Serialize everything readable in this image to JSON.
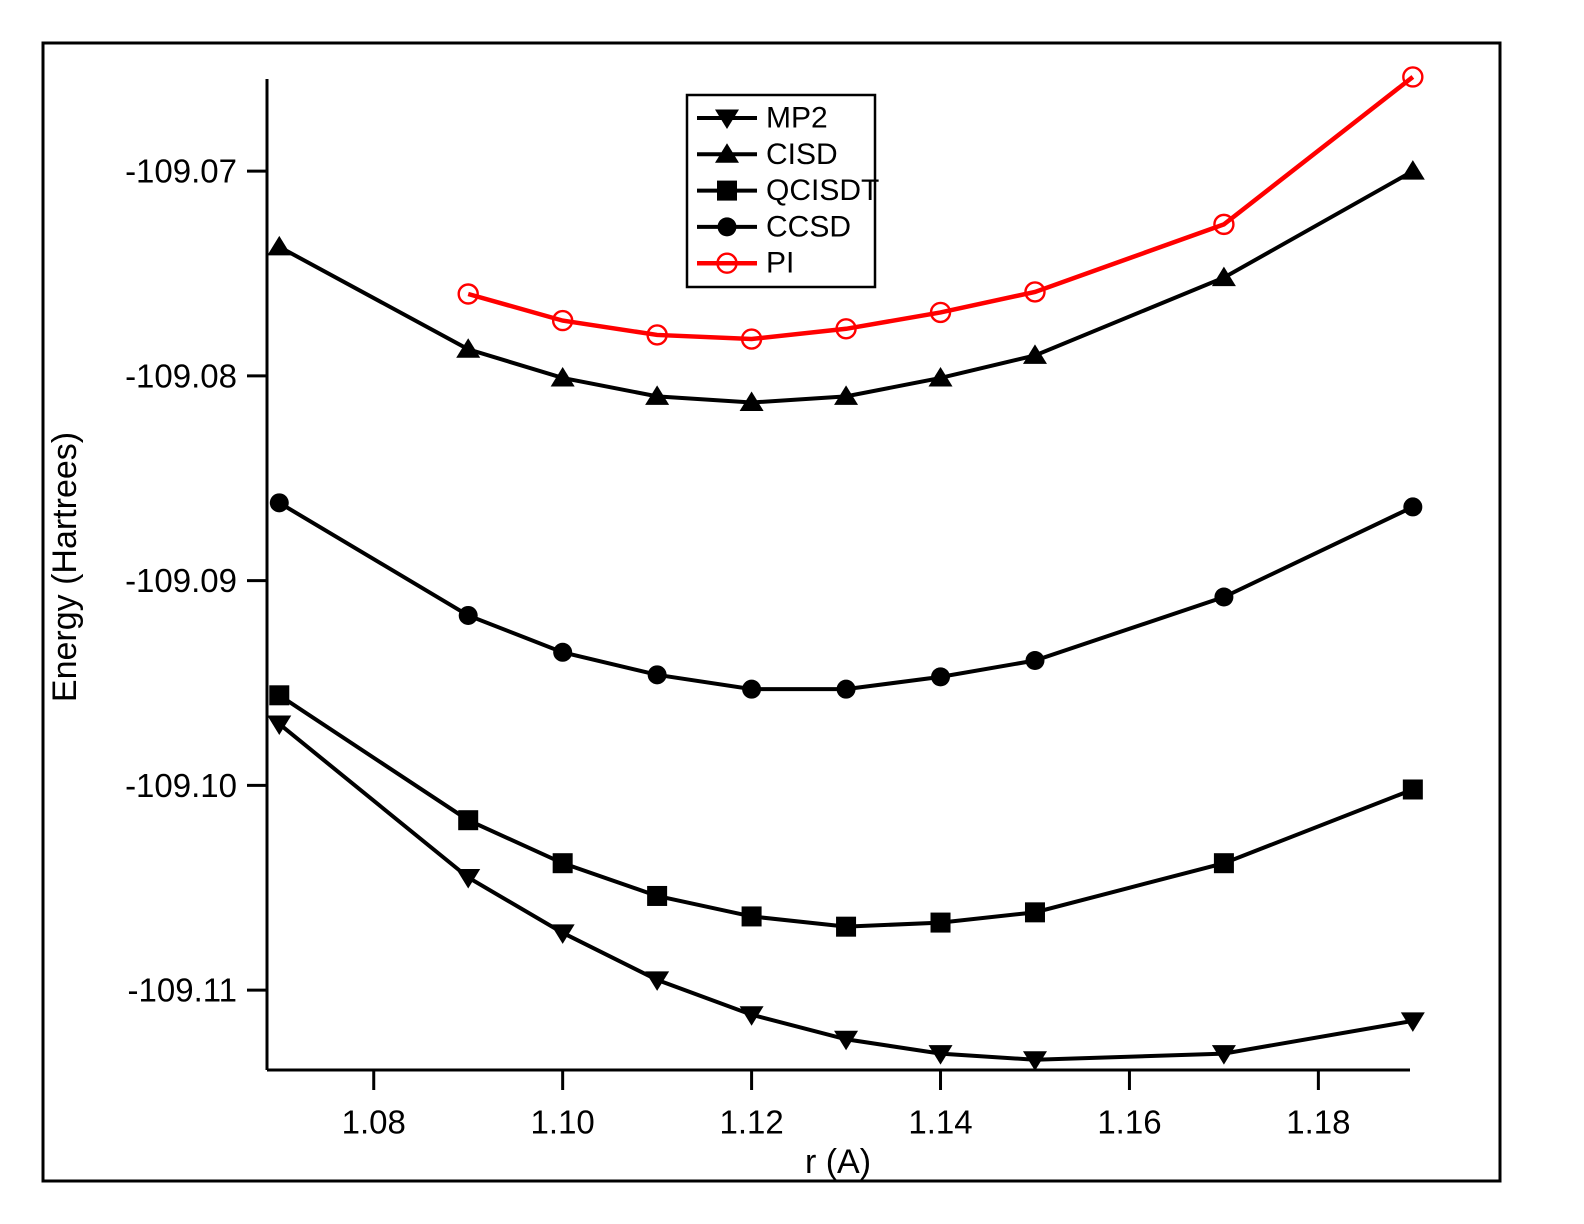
{
  "figure": {
    "background_color": "#ffffff",
    "border_color": "#000000",
    "accent_color": "#ff0000",
    "series_color": "#000000"
  },
  "chart_data": {
    "type": "line",
    "title": "",
    "xlabel": "r (A)",
    "ylabel": "Energy (Hartrees)",
    "xlim": [
      1.0687,
      1.1897
    ],
    "ylim": [
      -109.1139,
      -109.0655
    ],
    "grid": false,
    "legend_position": "upper-center",
    "x_ticks": [
      1.08,
      1.1,
      1.12,
      1.14,
      1.16,
      1.18
    ],
    "x_tick_labels": [
      "1.08",
      "1.10",
      "1.12",
      "1.14",
      "1.16",
      "1.18"
    ],
    "y_ticks": [
      -109.07,
      -109.08,
      -109.09,
      -109.1,
      -109.11
    ],
    "y_tick_labels": [
      "-109.07",
      "-109.08",
      "-109.09",
      "-109.10",
      "-109.11"
    ],
    "x": [
      1.07,
      1.09,
      1.1,
      1.11,
      1.12,
      1.13,
      1.14,
      1.15,
      1.17,
      1.19
    ],
    "series": [
      {
        "name": "MP2",
        "marker": "triangle-down",
        "color": "#000000",
        "values": [
          -109.097,
          -109.1045,
          -109.1072,
          -109.1095,
          -109.1112,
          -109.1124,
          -109.1131,
          -109.1134,
          -109.1131,
          -109.1115
        ]
      },
      {
        "name": "CISD",
        "marker": "triangle-up",
        "color": "#000000",
        "values": [
          -109.0737,
          -109.0787,
          -109.0801,
          -109.081,
          -109.0813,
          -109.081,
          -109.0801,
          -109.079,
          -109.0752,
          -109.07
        ]
      },
      {
        "name": "QCISDT",
        "marker": "square",
        "color": "#000000",
        "values": [
          -109.0956,
          -109.1017,
          -109.1038,
          -109.1054,
          -109.1064,
          -109.1069,
          -109.1067,
          -109.1062,
          -109.1038,
          -109.1002
        ]
      },
      {
        "name": "CCSD",
        "marker": "circle",
        "color": "#000000",
        "values": [
          -109.0862,
          -109.0917,
          -109.0935,
          -109.0946,
          -109.0953,
          -109.0953,
          -109.0947,
          -109.0939,
          -109.0908,
          -109.0864
        ]
      },
      {
        "name": "PI",
        "marker": "circle-open",
        "color": "#ff0000",
        "values": [
          null,
          -109.076,
          -109.0773,
          -109.078,
          -109.0782,
          -109.0777,
          -109.0769,
          -109.0759,
          -109.0726,
          -109.0654
        ]
      }
    ]
  }
}
